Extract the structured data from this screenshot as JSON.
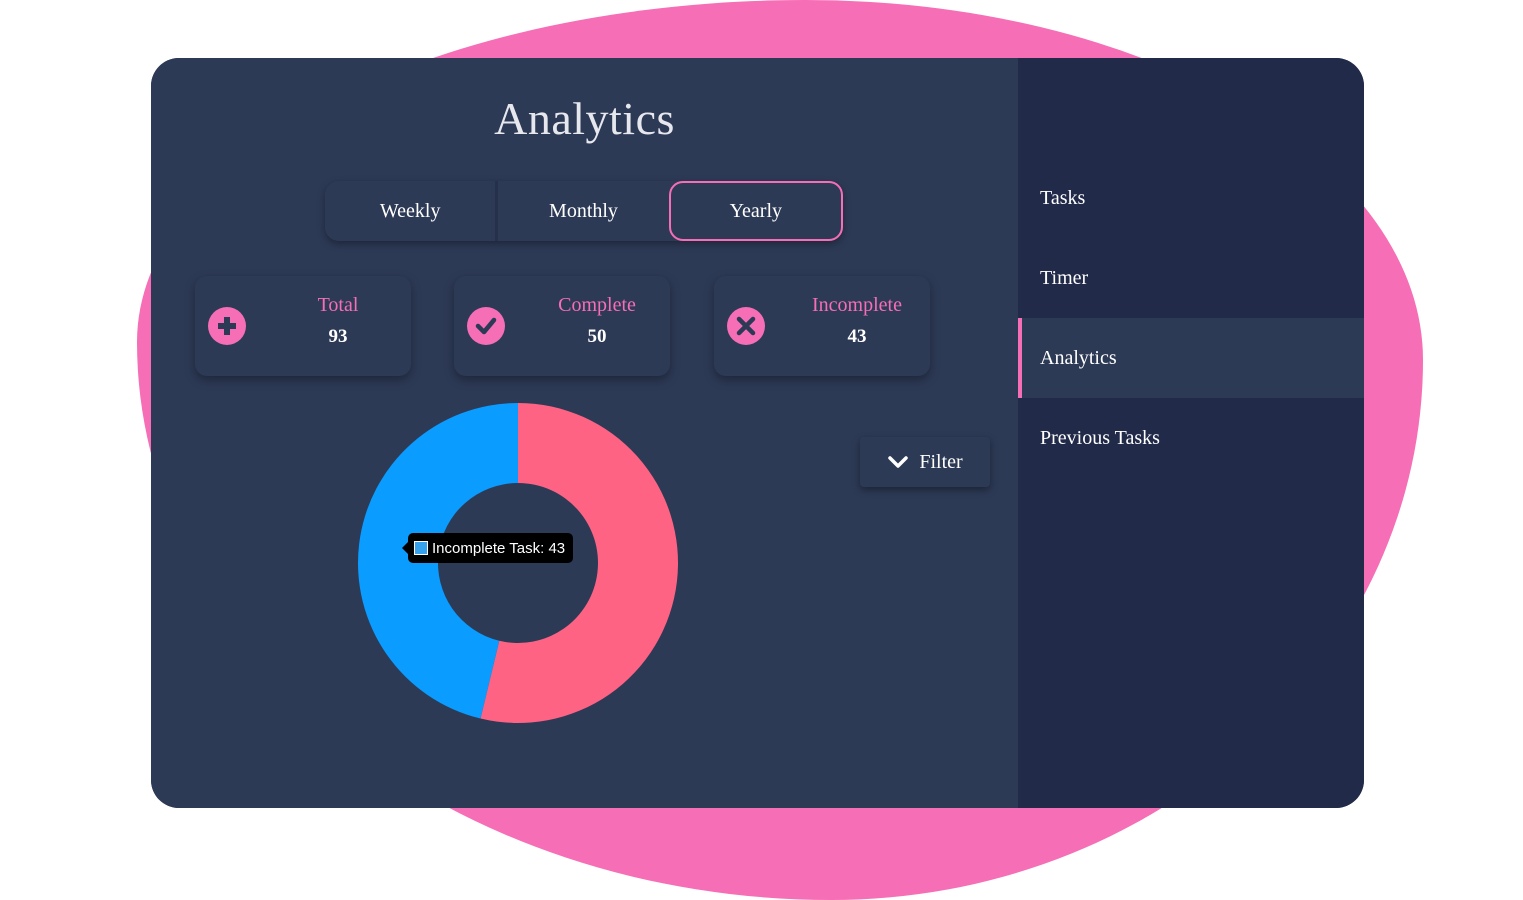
{
  "page_title": "Analytics",
  "tabs": [
    {
      "label": "Weekly",
      "active": false
    },
    {
      "label": "Monthly",
      "active": false
    },
    {
      "label": "Yearly",
      "active": true
    }
  ],
  "stats": {
    "total": {
      "label": "Total",
      "value": "93",
      "icon": "plus-icon"
    },
    "complete": {
      "label": "Complete",
      "value": "50",
      "icon": "check-icon"
    },
    "incomplete": {
      "label": "Incomplete",
      "value": "43",
      "icon": "x-icon"
    }
  },
  "filter": {
    "label": "Filter",
    "icon": "chevron-down-icon"
  },
  "sidebar": {
    "items": [
      {
        "label": "Tasks",
        "active": false
      },
      {
        "label": "Timer",
        "active": false
      },
      {
        "label": "Analytics",
        "active": true
      },
      {
        "label": "Previous Tasks",
        "active": false
      }
    ]
  },
  "colors": {
    "accent": "#f66eb5",
    "complete_slice": "#ff6384",
    "incomplete_slice": "#0a9cff",
    "panel": "#2d3a56",
    "sidebar": "#222a4a"
  },
  "chart_data": {
    "type": "doughnut",
    "categories": [
      "Complete Task",
      "Incomplete Task"
    ],
    "values": [
      50,
      43
    ],
    "colors": [
      "#ff6384",
      "#0a9cff"
    ],
    "tooltip": "Incomplete Task: 43"
  }
}
